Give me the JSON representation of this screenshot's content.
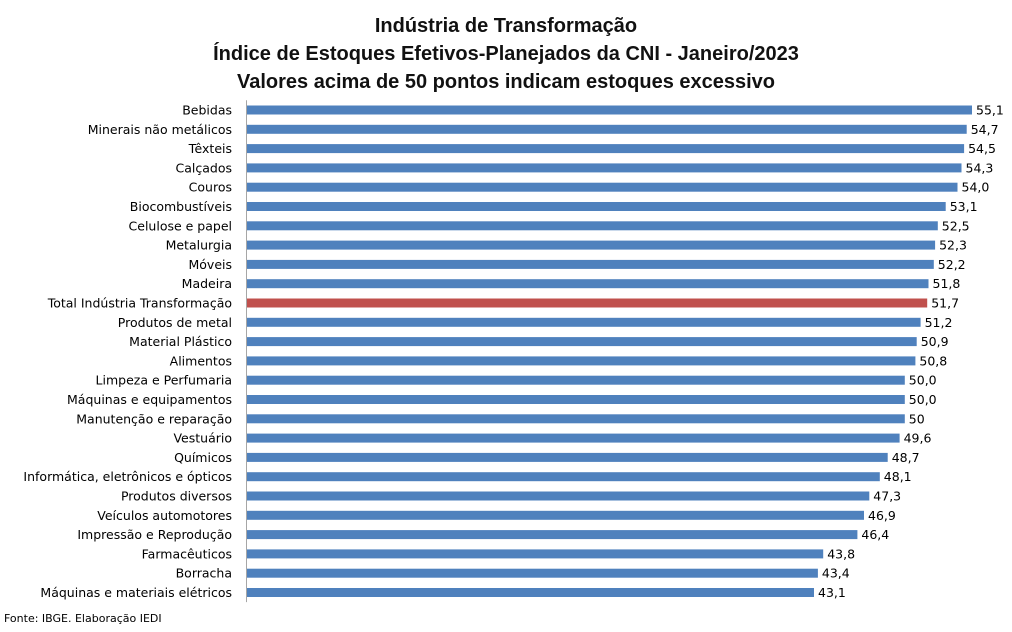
{
  "colors": {
    "bar": "#4F81BD",
    "highlight": "#C0504D"
  },
  "source": "Fonte: IBGE. Elaboração IEDI",
  "chart_data": {
    "type": "bar",
    "orientation": "horizontal",
    "title": [
      "Indústria de Transformação",
      "Índice de Estoques Efetivos-Planejados da CNI - Janeiro/2023",
      "Valores acima de 50 pontos indicam estoques excessivo"
    ],
    "categories": [
      "Bebidas",
      "Minerais não metálicos",
      "Têxteis",
      "Calçados",
      "Couros",
      "Biocombustíveis",
      "Celulose e papel",
      "Metalurgia",
      "Móveis",
      "Madeira",
      "Total Indústria Transformação",
      "Produtos de metal",
      "Material Plástico",
      "Alimentos",
      "Limpeza e Perfumaria",
      "Máquinas e equipamentos",
      "Manutenção e reparação",
      "Vestuário",
      "Químicos",
      "Informática, eletrônicos e ópticos",
      "Produtos diversos",
      "Veículos automotores",
      "Impressão e Reprodução",
      "Farmacêuticos",
      "Borracha",
      "Máquinas e materiais elétricos"
    ],
    "values": [
      55.1,
      54.7,
      54.5,
      54.3,
      54.0,
      53.1,
      52.5,
      52.3,
      52.2,
      51.8,
      51.7,
      51.2,
      50.9,
      50.8,
      50.0,
      50.0,
      50,
      49.6,
      48.7,
      48.1,
      47.3,
      46.9,
      46.4,
      43.8,
      43.4,
      43.1
    ],
    "value_labels": [
      "55,1",
      "54,7",
      "54,5",
      "54,3",
      "54,0",
      "53,1",
      "52,5",
      "52,3",
      "52,2",
      "51,8",
      "51,7",
      "51,2",
      "50,9",
      "50,8",
      "50,0",
      "50,0",
      "50",
      "49,6",
      "48,7",
      "48,1",
      "47,3",
      "46,9",
      "46,4",
      "43,8",
      "43,4",
      "43,1"
    ],
    "highlight_category": "Total Indústria Transformação",
    "xlim": [
      0,
      55.1
    ],
    "grid": false,
    "legend": "none"
  }
}
